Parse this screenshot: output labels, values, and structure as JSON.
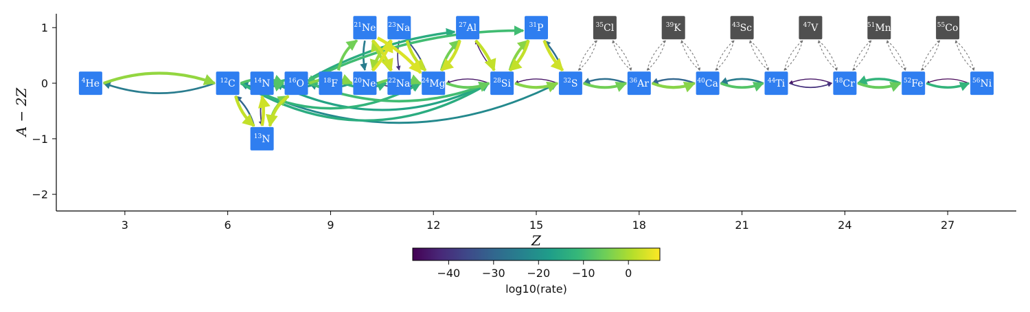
{
  "axes": {
    "xlabel": "Z",
    "ylabel": "A − 2Z",
    "xticks": [
      3,
      6,
      9,
      12,
      15,
      18,
      21,
      24,
      27
    ],
    "yticks": [
      1,
      0,
      -1,
      -2
    ],
    "xlim": [
      1,
      29
    ],
    "ylim": [
      -2.3,
      1.25
    ]
  },
  "colorbar": {
    "label": "log10(rate)",
    "ticks": [
      -40,
      -30,
      -20,
      -10,
      0
    ],
    "range": [
      -48,
      7
    ],
    "stops": [
      "#440154",
      "#482878",
      "#3e4989",
      "#31688e",
      "#26828e",
      "#1f9e89",
      "#35b779",
      "#6ece58",
      "#b5de2b",
      "#fde725"
    ]
  },
  "colors": {
    "active_node": "#2f7ef0",
    "inactive_node": "#4f4f4f"
  },
  "nodes": [
    {
      "id": "he4",
      "sym": "He",
      "A": 4,
      "Z": 2,
      "N": 2,
      "active": true
    },
    {
      "id": "c12",
      "sym": "C",
      "A": 12,
      "Z": 6,
      "N": 6,
      "active": true
    },
    {
      "id": "n13",
      "sym": "N",
      "A": 13,
      "Z": 7,
      "N": 6,
      "active": true
    },
    {
      "id": "n14",
      "sym": "N",
      "A": 14,
      "Z": 7,
      "N": 7,
      "active": true
    },
    {
      "id": "o16",
      "sym": "O",
      "A": 16,
      "Z": 8,
      "N": 8,
      "active": true
    },
    {
      "id": "f18",
      "sym": "F",
      "A": 18,
      "Z": 9,
      "N": 9,
      "active": true
    },
    {
      "id": "ne20",
      "sym": "Ne",
      "A": 20,
      "Z": 10,
      "N": 10,
      "active": true
    },
    {
      "id": "ne21",
      "sym": "Ne",
      "A": 21,
      "Z": 10,
      "N": 11,
      "active": true
    },
    {
      "id": "na22",
      "sym": "Na",
      "A": 22,
      "Z": 11,
      "N": 11,
      "active": true
    },
    {
      "id": "na23",
      "sym": "Na",
      "A": 23,
      "Z": 11,
      "N": 12,
      "active": true
    },
    {
      "id": "mg24",
      "sym": "Mg",
      "A": 24,
      "Z": 12,
      "N": 12,
      "active": true
    },
    {
      "id": "al27",
      "sym": "Al",
      "A": 27,
      "Z": 13,
      "N": 14,
      "active": true
    },
    {
      "id": "si28",
      "sym": "Si",
      "A": 28,
      "Z": 14,
      "N": 14,
      "active": true
    },
    {
      "id": "p31",
      "sym": "P",
      "A": 31,
      "Z": 15,
      "N": 16,
      "active": true
    },
    {
      "id": "s32",
      "sym": "S",
      "A": 32,
      "Z": 16,
      "N": 16,
      "active": true
    },
    {
      "id": "cl35",
      "sym": "Cl",
      "A": 35,
      "Z": 17,
      "N": 18,
      "active": false
    },
    {
      "id": "ar36",
      "sym": "Ar",
      "A": 36,
      "Z": 18,
      "N": 18,
      "active": true
    },
    {
      "id": "k39",
      "sym": "K",
      "A": 39,
      "Z": 19,
      "N": 20,
      "active": false
    },
    {
      "id": "ca40",
      "sym": "Ca",
      "A": 40,
      "Z": 20,
      "N": 20,
      "active": true
    },
    {
      "id": "sc43",
      "sym": "Sc",
      "A": 43,
      "Z": 21,
      "N": 22,
      "active": false
    },
    {
      "id": "ti44",
      "sym": "Ti",
      "A": 44,
      "Z": 22,
      "N": 22,
      "active": true
    },
    {
      "id": "v47",
      "sym": "V",
      "A": 47,
      "Z": 23,
      "N": 24,
      "active": false
    },
    {
      "id": "cr48",
      "sym": "Cr",
      "A": 48,
      "Z": 24,
      "N": 24,
      "active": true
    },
    {
      "id": "mn51",
      "sym": "Mn",
      "A": 51,
      "Z": 25,
      "N": 26,
      "active": false
    },
    {
      "id": "fe52",
      "sym": "Fe",
      "A": 52,
      "Z": 26,
      "N": 26,
      "active": true
    },
    {
      "id": "co55",
      "sym": "Co",
      "A": 55,
      "Z": 27,
      "N": 28,
      "active": false
    },
    {
      "id": "ni56",
      "sym": "Ni",
      "A": 56,
      "Z": 28,
      "N": 28,
      "active": true
    }
  ],
  "edges": [
    {
      "from": "he4",
      "to": "c12",
      "rate": -2,
      "bend": -0.18
    },
    {
      "from": "c12",
      "to": "he4",
      "rate": -25,
      "bend": -0.18
    },
    {
      "from": "c12",
      "to": "n13",
      "rate": 2,
      "bend": 0.15
    },
    {
      "from": "n13",
      "to": "c12",
      "rate": -30,
      "bend": 0.15
    },
    {
      "from": "n13",
      "to": "n14",
      "rate": 3,
      "bend": 0.1
    },
    {
      "from": "n14",
      "to": "n13",
      "rate": -38,
      "bend": 0.1
    },
    {
      "from": "n14",
      "to": "o16",
      "rate": -8,
      "bend": 0.2
    },
    {
      "from": "o16",
      "to": "n13",
      "rate": 2,
      "bend": 0.2
    },
    {
      "from": "n13",
      "to": "o16",
      "rate": -4,
      "bend": -0.25
    },
    {
      "from": "c12",
      "to": "o16",
      "rate": -8,
      "bend": -0.2
    },
    {
      "from": "o16",
      "to": "c12",
      "rate": -22,
      "bend": -0.2
    },
    {
      "from": "n14",
      "to": "f18",
      "rate": -10,
      "bend": -0.2
    },
    {
      "from": "f18",
      "to": "n14",
      "rate": -18,
      "bend": -0.2
    },
    {
      "from": "o16",
      "to": "ne20",
      "rate": -3,
      "bend": -0.2
    },
    {
      "from": "ne20",
      "to": "o16",
      "rate": -20,
      "bend": -0.2
    },
    {
      "from": "f18",
      "to": "ne21",
      "rate": -5,
      "bend": -0.2
    },
    {
      "from": "f18",
      "to": "na22",
      "rate": -12,
      "bend": 0.2
    },
    {
      "from": "ne20",
      "to": "mg24",
      "rate": -5,
      "bend": -0.2
    },
    {
      "from": "mg24",
      "to": "ne20",
      "rate": -40,
      "bend": -0.2
    },
    {
      "from": "ne20",
      "to": "na23",
      "rate": 4,
      "bend": 0.1
    },
    {
      "from": "ne21",
      "to": "ne20",
      "rate": -25,
      "bend": 0.1
    },
    {
      "from": "ne21",
      "to": "na22",
      "rate": 3,
      "bend": -0.1
    },
    {
      "from": "ne21",
      "to": "mg24",
      "rate": 4,
      "bend": -0.1
    },
    {
      "from": "na22",
      "to": "ne21",
      "rate": 0,
      "bend": -0.1
    },
    {
      "from": "na23",
      "to": "ne20",
      "rate": -1,
      "bend": 0.15
    },
    {
      "from": "na23",
      "to": "mg24",
      "rate": 2,
      "bend": 0.15
    },
    {
      "from": "na23",
      "to": "na22",
      "rate": -40,
      "bend": 0.1
    },
    {
      "from": "mg24",
      "to": "na23",
      "rate": -35,
      "bend": 0.1
    },
    {
      "from": "ne20",
      "to": "na22",
      "rate": -14,
      "bend": 0.2
    },
    {
      "from": "na22",
      "to": "mg24",
      "rate": -12,
      "bend": 0.2
    },
    {
      "from": "c12",
      "to": "mg24",
      "rate": -12,
      "bend": 0.28
    },
    {
      "from": "c12",
      "to": "si28",
      "rate": -14,
      "bend": 0.3
    },
    {
      "from": "n14",
      "to": "si28",
      "rate": -16,
      "bend": 0.25
    },
    {
      "from": "c12",
      "to": "s32",
      "rate": -22,
      "bend": 0.25
    },
    {
      "from": "o16",
      "to": "si28",
      "rate": -10,
      "bend": 0.2
    },
    {
      "from": "o16",
      "to": "al27",
      "rate": -14,
      "bend": -0.1
    },
    {
      "from": "o16",
      "to": "p31",
      "rate": -10,
      "bend": -0.12
    },
    {
      "from": "mg24",
      "to": "al27",
      "rate": -5,
      "bend": -0.15
    },
    {
      "from": "mg24",
      "to": "si28",
      "rate": -6,
      "bend": 0.2
    },
    {
      "from": "si28",
      "to": "mg24",
      "rate": -45,
      "bend": 0.2
    },
    {
      "from": "al27",
      "to": "mg24",
      "rate": 3,
      "bend": -0.15
    },
    {
      "from": "al27",
      "to": "si28",
      "rate": 2,
      "bend": -0.1
    },
    {
      "from": "si28",
      "to": "al27",
      "rate": -44,
      "bend": -0.1
    },
    {
      "from": "si28",
      "to": "p31",
      "rate": -3,
      "bend": -0.15
    },
    {
      "from": "p31",
      "to": "si28",
      "rate": 2,
      "bend": -0.15
    },
    {
      "from": "p31",
      "to": "s32",
      "rate": 3,
      "bend": 0.1
    },
    {
      "from": "s32",
      "to": "p31",
      "rate": -28,
      "bend": 0.1
    },
    {
      "from": "si28",
      "to": "s32",
      "rate": -3,
      "bend": 0.2
    },
    {
      "from": "s32",
      "to": "si28",
      "rate": -45,
      "bend": 0.2
    },
    {
      "from": "s32",
      "to": "ar36",
      "rate": -5,
      "bend": 0.2
    },
    {
      "from": "ar36",
      "to": "s32",
      "rate": -28,
      "bend": 0.2
    },
    {
      "from": "ar36",
      "to": "ca40",
      "rate": -3,
      "bend": 0.2
    },
    {
      "from": "ca40",
      "to": "ar36",
      "rate": -30,
      "bend": 0.2
    },
    {
      "from": "ca40",
      "to": "ti44",
      "rate": -8,
      "bend": 0.2
    },
    {
      "from": "ti44",
      "to": "ca40",
      "rate": -25,
      "bend": 0.2
    },
    {
      "from": "ti44",
      "to": "cr48",
      "rate": -40,
      "bend": 0.2
    },
    {
      "from": "cr48",
      "to": "ti44",
      "rate": -45,
      "bend": 0.2
    },
    {
      "from": "cr48",
      "to": "fe52",
      "rate": -6,
      "bend": 0.2
    },
    {
      "from": "fe52",
      "to": "cr48",
      "rate": -12,
      "bend": 0.2
    },
    {
      "from": "fe52",
      "to": "ni56",
      "rate": -12,
      "bend": 0.2
    },
    {
      "from": "ni56",
      "to": "fe52",
      "rate": -48,
      "bend": 0.2
    }
  ],
  "inactive_edges": [
    {
      "from": "s32",
      "to": "cl35",
      "bend": -0.15
    },
    {
      "from": "cl35",
      "to": "s32",
      "bend": -0.15
    },
    {
      "from": "cl35",
      "to": "ar36",
      "bend": -0.15
    },
    {
      "from": "ar36",
      "to": "cl35",
      "bend": -0.15
    },
    {
      "from": "ar36",
      "to": "k39",
      "bend": -0.15
    },
    {
      "from": "k39",
      "to": "ar36",
      "bend": -0.15
    },
    {
      "from": "k39",
      "to": "ca40",
      "bend": -0.15
    },
    {
      "from": "ca40",
      "to": "k39",
      "bend": -0.15
    },
    {
      "from": "ca40",
      "to": "sc43",
      "bend": -0.15
    },
    {
      "from": "sc43",
      "to": "ca40",
      "bend": -0.15
    },
    {
      "from": "sc43",
      "to": "ti44",
      "bend": -0.15
    },
    {
      "from": "ti44",
      "to": "sc43",
      "bend": -0.15
    },
    {
      "from": "ti44",
      "to": "v47",
      "bend": -0.15
    },
    {
      "from": "v47",
      "to": "ti44",
      "bend": -0.15
    },
    {
      "from": "v47",
      "to": "cr48",
      "bend": -0.15
    },
    {
      "from": "cr48",
      "to": "v47",
      "bend": -0.15
    },
    {
      "from": "cr48",
      "to": "mn51",
      "bend": -0.15
    },
    {
      "from": "mn51",
      "to": "cr48",
      "bend": -0.15
    },
    {
      "from": "mn51",
      "to": "fe52",
      "bend": -0.15
    },
    {
      "from": "fe52",
      "to": "mn51",
      "bend": -0.15
    },
    {
      "from": "fe52",
      "to": "co55",
      "bend": -0.15
    },
    {
      "from": "co55",
      "to": "fe52",
      "bend": -0.15
    },
    {
      "from": "co55",
      "to": "ni56",
      "bend": -0.15
    },
    {
      "from": "ni56",
      "to": "co55",
      "bend": -0.15
    }
  ]
}
